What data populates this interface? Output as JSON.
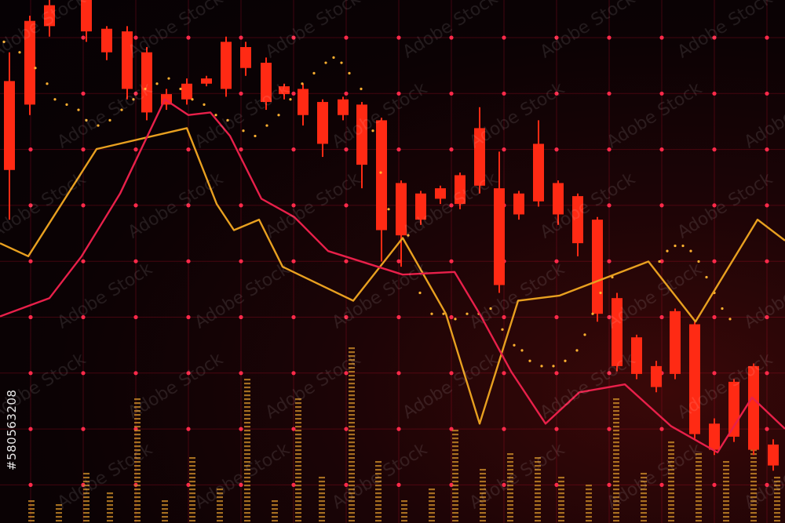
{
  "stock_id": "#580563208",
  "watermark_text": "Adobe Stock",
  "colors": {
    "background": "#060104",
    "candle": "#ff2a14",
    "grid": "#d01030",
    "grid_dot": "#ff2a4a",
    "line_yellow": "#e8a020",
    "line_red": "#e8204a",
    "volume": "#c98a28",
    "signal_dots": "#ffb030"
  },
  "chart_data": {
    "type": "line",
    "title": "",
    "xlabel": "",
    "ylabel": "",
    "grid": true,
    "axes_visible": false,
    "xlim": [
      0,
      100
    ],
    "ylim": [
      0,
      100
    ],
    "candles": [
      {
        "x": 1.2,
        "open": 84.5,
        "close": 67.5,
        "high": 90,
        "low": 58
      },
      {
        "x": 3.8,
        "open": 96,
        "close": 80,
        "high": 97,
        "low": 78
      },
      {
        "x": 6.3,
        "open": 99,
        "close": 95,
        "high": 100,
        "low": 93
      },
      {
        "x": 11,
        "open": 100,
        "close": 94,
        "high": 100,
        "low": 92
      },
      {
        "x": 13.6,
        "open": 94.5,
        "close": 90,
        "high": 95,
        "low": 88.5
      },
      {
        "x": 16.2,
        "open": 94,
        "close": 83,
        "high": 95,
        "low": 81
      },
      {
        "x": 18.7,
        "open": 90,
        "close": 78.5,
        "high": 91,
        "low": 77
      },
      {
        "x": 21.2,
        "open": 82,
        "close": 80,
        "high": 83,
        "low": 79
      },
      {
        "x": 23.8,
        "open": 84,
        "close": 81,
        "high": 85,
        "low": 80
      },
      {
        "x": 26.3,
        "open": 85,
        "close": 84,
        "high": 85.5,
        "low": 83.5
      },
      {
        "x": 28.8,
        "open": 92,
        "close": 83,
        "high": 93,
        "low": 81.5
      },
      {
        "x": 31.3,
        "open": 91,
        "close": 87,
        "high": 92,
        "low": 85.5
      },
      {
        "x": 33.9,
        "open": 88,
        "close": 80.5,
        "high": 89,
        "low": 79
      },
      {
        "x": 36.2,
        "open": 83.5,
        "close": 82,
        "high": 84,
        "low": 81
      },
      {
        "x": 38.6,
        "open": 83,
        "close": 78,
        "high": 84,
        "low": 76
      },
      {
        "x": 41.1,
        "open": 80.5,
        "close": 72.5,
        "high": 81,
        "low": 70
      },
      {
        "x": 43.7,
        "open": 81,
        "close": 78,
        "high": 81.5,
        "low": 77
      },
      {
        "x": 46.1,
        "open": 80,
        "close": 68.5,
        "high": 80.5,
        "low": 64
      },
      {
        "x": 48.6,
        "open": 77,
        "close": 56,
        "high": 77.5,
        "low": 50
      },
      {
        "x": 51.1,
        "open": 65,
        "close": 55,
        "high": 65.5,
        "low": 49
      },
      {
        "x": 53.6,
        "open": 63,
        "close": 58,
        "high": 63.5,
        "low": 57
      },
      {
        "x": 56.1,
        "open": 64,
        "close": 62,
        "high": 64.5,
        "low": 61
      },
      {
        "x": 58.6,
        "open": 66.5,
        "close": 61,
        "high": 67,
        "low": 60
      },
      {
        "x": 61.1,
        "open": 75.5,
        "close": 64.5,
        "high": 79.5,
        "low": 63
      },
      {
        "x": 63.6,
        "open": 64,
        "close": 45.5,
        "high": 71,
        "low": 44
      },
      {
        "x": 66.1,
        "open": 63,
        "close": 59,
        "high": 63.5,
        "low": 58
      },
      {
        "x": 68.6,
        "open": 72.5,
        "close": 61.5,
        "high": 77,
        "low": 60.5
      },
      {
        "x": 71.1,
        "open": 65,
        "close": 59,
        "high": 65.5,
        "low": 57
      },
      {
        "x": 73.6,
        "open": 62.5,
        "close": 53.5,
        "high": 63,
        "low": 51
      },
      {
        "x": 76.1,
        "open": 58,
        "close": 40,
        "high": 58.5,
        "low": 38.5
      },
      {
        "x": 78.6,
        "open": 43,
        "close": 30,
        "high": 44,
        "low": 29
      },
      {
        "x": 81.1,
        "open": 35.5,
        "close": 28.5,
        "high": 36,
        "low": 27.5
      },
      {
        "x": 83.6,
        "open": 30,
        "close": 26,
        "high": 31,
        "low": 25
      },
      {
        "x": 86,
        "open": 40.5,
        "close": 28.5,
        "high": 41,
        "low": 27.5
      },
      {
        "x": 88.5,
        "open": 38,
        "close": 17,
        "high": 38.5,
        "low": 16
      },
      {
        "x": 91,
        "open": 19,
        "close": 14,
        "high": 20,
        "low": 13
      },
      {
        "x": 93.5,
        "open": 27,
        "close": 16.5,
        "high": 27.5,
        "low": 15.5
      },
      {
        "x": 96,
        "open": 30,
        "close": 14,
        "high": 30.5,
        "low": 13
      },
      {
        "x": 98.5,
        "open": 15,
        "close": 11,
        "high": 16,
        "low": 10
      }
    ],
    "series": [
      {
        "points": [
          [
            0,
            53.5
          ],
          [
            3.6,
            51
          ],
          [
            12.3,
            71.5
          ],
          [
            23.8,
            75.5
          ],
          [
            27.6,
            61
          ],
          [
            29.8,
            56
          ],
          [
            33,
            58
          ],
          [
            36,
            49
          ],
          [
            45,
            42.5
          ],
          [
            51.3,
            54.5
          ],
          [
            56.8,
            40
          ],
          [
            61.1,
            19
          ],
          [
            66,
            42.5
          ],
          [
            71.3,
            43.5
          ],
          [
            82.6,
            50
          ],
          [
            88.6,
            38.5
          ],
          [
            96.5,
            58
          ],
          [
            100,
            54
          ]
        ]
      },
      {
        "points": [
          [
            0,
            39.5
          ],
          [
            6.3,
            43
          ],
          [
            10.4,
            51
          ],
          [
            15.3,
            63
          ],
          [
            21,
            81
          ],
          [
            24,
            78
          ],
          [
            26.8,
            78.5
          ],
          [
            29.3,
            74
          ],
          [
            33.3,
            62
          ],
          [
            37.5,
            58.5
          ],
          [
            41.8,
            52
          ],
          [
            51.3,
            47.5
          ],
          [
            57.9,
            48
          ],
          [
            61.1,
            40
          ],
          [
            65.1,
            29
          ],
          [
            69.5,
            19
          ],
          [
            73.8,
            25
          ],
          [
            79.6,
            26.5
          ],
          [
            85.5,
            18.5
          ],
          [
            91.4,
            13.5
          ],
          [
            95.8,
            24
          ],
          [
            100,
            18
          ]
        ]
      }
    ],
    "signal_dots": [
      [
        0.5,
        92
      ],
      [
        2.5,
        90
      ],
      [
        4.5,
        87
      ],
      [
        6,
        84
      ],
      [
        7,
        81
      ],
      [
        8.5,
        80
      ],
      [
        10,
        79
      ],
      [
        11,
        77
      ],
      [
        12.5,
        76
      ],
      [
        14,
        77
      ],
      [
        15.5,
        79
      ],
      [
        17,
        81
      ],
      [
        18.5,
        83
      ],
      [
        20,
        84
      ],
      [
        21.5,
        85
      ],
      [
        23,
        83
      ],
      [
        24.5,
        81
      ],
      [
        26,
        80
      ],
      [
        27.5,
        78
      ],
      [
        29,
        77
      ],
      [
        31,
        75
      ],
      [
        32.5,
        74
      ],
      [
        34,
        76
      ],
      [
        35.5,
        78
      ],
      [
        37,
        81
      ],
      [
        38.5,
        84
      ],
      [
        40,
        86
      ],
      [
        41.5,
        88
      ],
      [
        42.5,
        89
      ],
      [
        43.5,
        88
      ],
      [
        44.5,
        86
      ],
      [
        46,
        83
      ],
      [
        47.5,
        75
      ],
      [
        48.5,
        67
      ],
      [
        49.5,
        60
      ],
      [
        52,
        55
      ],
      [
        53.5,
        44
      ],
      [
        55,
        40
      ],
      [
        56.5,
        40
      ],
      [
        58,
        39
      ],
      [
        59.5,
        40
      ],
      [
        61,
        40
      ],
      [
        62.5,
        41
      ],
      [
        64,
        37
      ],
      [
        65.5,
        34
      ],
      [
        66.5,
        33
      ],
      [
        67.5,
        31
      ],
      [
        69,
        30
      ],
      [
        70.5,
        30
      ],
      [
        72,
        31
      ],
      [
        73.5,
        33
      ],
      [
        74.5,
        36
      ],
      [
        75.5,
        40
      ],
      [
        76.5,
        44
      ],
      [
        78,
        47
      ],
      [
        84,
        50
      ],
      [
        85,
        52
      ],
      [
        86,
        53
      ],
      [
        87,
        53
      ],
      [
        88,
        52
      ],
      [
        89,
        50
      ],
      [
        90,
        47
      ],
      [
        91,
        44
      ],
      [
        92,
        41
      ],
      [
        93,
        39
      ]
    ],
    "volume": [
      {
        "x": 4,
        "v": 5
      },
      {
        "x": 7.5,
        "v": 4
      },
      {
        "x": 11,
        "v": 10
      },
      {
        "x": 14,
        "v": 6
      },
      {
        "x": 17.5,
        "v": 24
      },
      {
        "x": 21,
        "v": 5
      },
      {
        "x": 24.5,
        "v": 13
      },
      {
        "x": 28,
        "v": 7
      },
      {
        "x": 31.5,
        "v": 28
      },
      {
        "x": 35,
        "v": 5
      },
      {
        "x": 38,
        "v": 24
      },
      {
        "x": 41,
        "v": 9
      },
      {
        "x": 44.8,
        "v": 34
      },
      {
        "x": 48.2,
        "v": 12
      },
      {
        "x": 51.5,
        "v": 5
      },
      {
        "x": 55,
        "v": 7
      },
      {
        "x": 58,
        "v": 18
      },
      {
        "x": 61.5,
        "v": 11
      },
      {
        "x": 65,
        "v": 14
      },
      {
        "x": 68.5,
        "v": 13
      },
      {
        "x": 71.5,
        "v": 9
      },
      {
        "x": 75,
        "v": 8
      },
      {
        "x": 78.5,
        "v": 24
      },
      {
        "x": 82,
        "v": 10
      },
      {
        "x": 85.5,
        "v": 16
      },
      {
        "x": 89,
        "v": 14
      },
      {
        "x": 92.5,
        "v": 12
      },
      {
        "x": 96,
        "v": 18
      },
      {
        "x": 99,
        "v": 9
      }
    ]
  }
}
